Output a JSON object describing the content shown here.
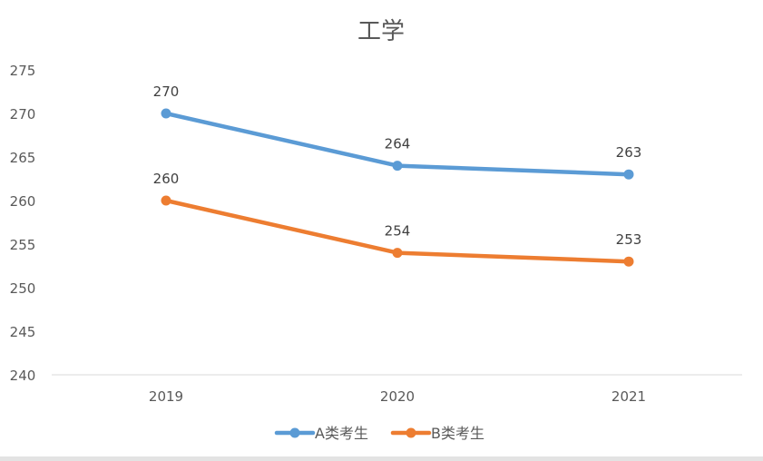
{
  "chart_data": {
    "type": "line",
    "title": "工学",
    "categories": [
      "2019",
      "2020",
      "2021"
    ],
    "series": [
      {
        "name": "A类考生",
        "values": [
          270,
          264,
          263
        ],
        "color": "#5b9bd5"
      },
      {
        "name": "B类考生",
        "values": [
          260,
          254,
          253
        ],
        "color": "#ed7d31"
      }
    ],
    "yticks": [
      240,
      245,
      250,
      255,
      260,
      265,
      270,
      275
    ],
    "ylim": [
      240,
      275
    ],
    "xlabel": "",
    "ylabel": "",
    "grid": false,
    "data_labels": true,
    "legend": "bottom"
  }
}
